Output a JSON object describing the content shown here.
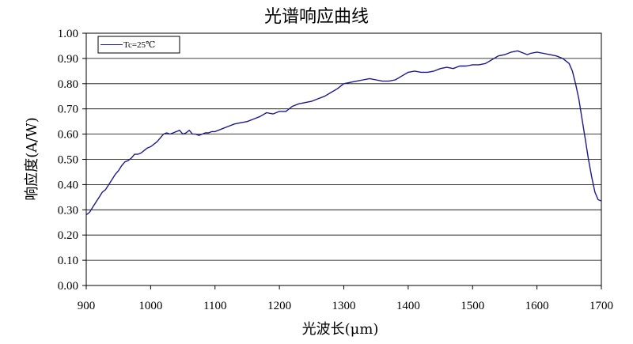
{
  "chart_data": {
    "type": "line",
    "title": "光谱响应曲线",
    "xlabel": "光波长(μm)",
    "ylabel": "响应度(A/W)",
    "xlim": [
      900,
      1700
    ],
    "ylim": [
      0,
      1
    ],
    "xticks": [
      "900",
      "1000",
      "1100",
      "1200",
      "1300",
      "1400",
      "1500",
      "1600",
      "1700"
    ],
    "yticks": [
      "0.00",
      "0.10",
      "0.20",
      "0.30",
      "0.40",
      "0.50",
      "0.60",
      "0.70",
      "0.80",
      "0.90",
      "1.00"
    ],
    "grid": "horizontal",
    "legend_position": "top-left",
    "series": [
      {
        "name": "Tc=25℃",
        "color": "#1a1a8c",
        "x": [
          900,
          905,
          910,
          915,
          920,
          925,
          930,
          935,
          940,
          945,
          950,
          955,
          960,
          965,
          970,
          975,
          980,
          985,
          990,
          995,
          1000,
          1005,
          1010,
          1015,
          1020,
          1025,
          1030,
          1035,
          1040,
          1045,
          1050,
          1055,
          1060,
          1065,
          1070,
          1075,
          1080,
          1085,
          1090,
          1095,
          1100,
          1110,
          1120,
          1130,
          1140,
          1150,
          1160,
          1170,
          1180,
          1190,
          1200,
          1210,
          1220,
          1230,
          1240,
          1250,
          1260,
          1270,
          1280,
          1290,
          1300,
          1310,
          1320,
          1330,
          1340,
          1350,
          1360,
          1370,
          1380,
          1390,
          1400,
          1410,
          1420,
          1430,
          1440,
          1450,
          1460,
          1470,
          1480,
          1490,
          1500,
          1510,
          1520,
          1530,
          1540,
          1550,
          1560,
          1570,
          1580,
          1585,
          1590,
          1600,
          1610,
          1620,
          1630,
          1640,
          1650,
          1655,
          1660,
          1665,
          1670,
          1675,
          1680,
          1685,
          1690,
          1695,
          1700
        ],
        "y": [
          0.28,
          0.29,
          0.31,
          0.33,
          0.35,
          0.37,
          0.38,
          0.4,
          0.42,
          0.44,
          0.455,
          0.475,
          0.49,
          0.495,
          0.505,
          0.52,
          0.52,
          0.525,
          0.535,
          0.545,
          0.55,
          0.56,
          0.57,
          0.585,
          0.6,
          0.605,
          0.6,
          0.605,
          0.61,
          0.615,
          0.6,
          0.605,
          0.615,
          0.6,
          0.6,
          0.595,
          0.6,
          0.605,
          0.605,
          0.61,
          0.61,
          0.62,
          0.63,
          0.64,
          0.645,
          0.65,
          0.66,
          0.67,
          0.685,
          0.68,
          0.69,
          0.69,
          0.71,
          0.72,
          0.725,
          0.73,
          0.74,
          0.75,
          0.765,
          0.78,
          0.8,
          0.805,
          0.81,
          0.815,
          0.82,
          0.815,
          0.81,
          0.81,
          0.815,
          0.83,
          0.845,
          0.85,
          0.845,
          0.845,
          0.85,
          0.86,
          0.865,
          0.86,
          0.87,
          0.87,
          0.875,
          0.875,
          0.88,
          0.895,
          0.91,
          0.915,
          0.925,
          0.93,
          0.92,
          0.915,
          0.92,
          0.925,
          0.92,
          0.915,
          0.91,
          0.9,
          0.88,
          0.85,
          0.8,
          0.74,
          0.66,
          0.58,
          0.5,
          0.43,
          0.37,
          0.34,
          0.335
        ]
      }
    ]
  }
}
